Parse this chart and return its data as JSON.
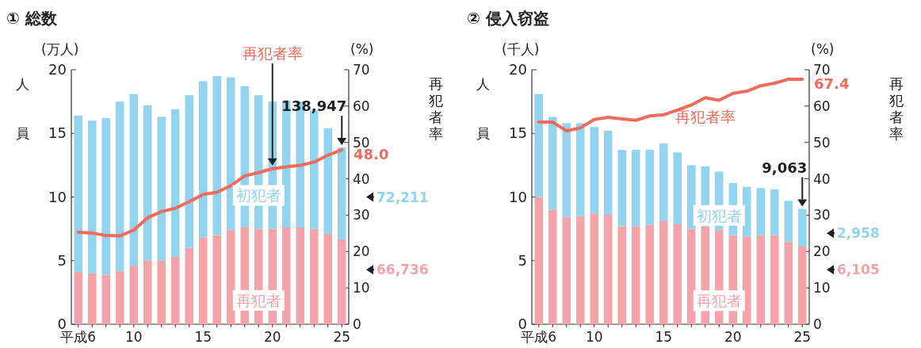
{
  "chart_data": [
    {
      "type": "bar",
      "title": "① 総数",
      "stacked": true,
      "legend": false,
      "grid": false,
      "categories": [
        "平成6",
        null,
        null,
        null,
        "10",
        null,
        null,
        null,
        null,
        "15",
        null,
        null,
        null,
        null,
        "20",
        null,
        null,
        null,
        null,
        "25"
      ],
      "ylabel": "人員",
      "y2label": "再犯者率",
      "annotations": [
        "(万人)",
        "(%)",
        {
          "text": "138,947",
          "x": "25",
          "y": 13.8947
        },
        "72,211",
        "66,736"
      ],
      "ylim": [
        0,
        20
      ],
      "yticks": [
        0,
        5,
        10,
        15,
        20
      ],
      "y2lim": [
        0,
        70
      ],
      "y2ticks": [
        0,
        10,
        20,
        30,
        40,
        50,
        60,
        70
      ],
      "series": [
        {
          "name": "再犯者",
          "color": "#f4a3a8",
          "values": [
            4.1,
            4.0,
            3.9,
            4.2,
            4.6,
            5.0,
            5.0,
            5.3,
            6.0,
            6.8,
            7.0,
            7.4,
            7.6,
            7.5,
            7.5,
            7.6,
            7.6,
            7.5,
            7.1,
            6.6736
          ]
        },
        {
          "name": "初犯者",
          "color": "#92d3f0",
          "values": [
            12.3,
            12.0,
            12.3,
            13.3,
            13.5,
            12.2,
            11.3,
            11.6,
            12.0,
            12.3,
            12.5,
            12.0,
            11.1,
            10.5,
            10.0,
            10.0,
            9.9,
            9.3,
            8.3,
            7.2211
          ]
        },
        {
          "name": "再犯者率",
          "type": "line",
          "axis": "y2",
          "color": "#ef6b5b",
          "values": [
            25.3,
            25.1,
            24.4,
            24.3,
            25.9,
            29.3,
            31.0,
            31.9,
            33.7,
            35.7,
            36.3,
            38.1,
            40.8,
            41.7,
            42.8,
            43.3,
            43.7,
            44.6,
            46.5,
            48.0
          ],
          "value_labels": [
            null,
            null,
            null,
            null,
            null,
            null,
            null,
            null,
            null,
            null,
            null,
            null,
            null,
            null,
            null,
            null,
            null,
            null,
            null,
            "48.0"
          ]
        }
      ]
    },
    {
      "type": "bar",
      "title": "② 侵入窃盗",
      "stacked": true,
      "legend": false,
      "grid": false,
      "categories": [
        "平成6",
        null,
        null,
        null,
        "10",
        null,
        null,
        null,
        null,
        "15",
        null,
        null,
        null,
        null,
        "20",
        null,
        null,
        null,
        null,
        "25"
      ],
      "ylabel": "人員",
      "y2label": "再犯者率",
      "annotations": [
        "(千人)",
        "(%)",
        {
          "text": "9,063",
          "x": "25",
          "y": 9.063
        },
        "2,958",
        "6,105"
      ],
      "ylim": [
        0,
        20
      ],
      "yticks": [
        0,
        5,
        10,
        15,
        20
      ],
      "y2lim": [
        0,
        70
      ],
      "y2ticks": [
        0,
        10,
        20,
        30,
        40,
        50,
        60,
        70
      ],
      "series": [
        {
          "name": "再犯者",
          "color": "#f4a3a8",
          "values": [
            10.0,
            9.0,
            8.4,
            8.5,
            8.7,
            8.6,
            7.7,
            7.7,
            7.8,
            8.1,
            7.9,
            7.5,
            7.7,
            7.4,
            7.0,
            6.9,
            7.0,
            7.0,
            6.5,
            6.105
          ]
        },
        {
          "name": "初犯者",
          "color": "#92d3f0",
          "values": [
            8.1,
            7.3,
            7.4,
            7.3,
            6.8,
            6.6,
            6.0,
            6.0,
            5.9,
            6.1,
            5.6,
            5.0,
            4.7,
            4.6,
            4.1,
            3.9,
            3.7,
            3.6,
            3.2,
            2.958
          ]
        },
        {
          "name": "再犯者率",
          "type": "line",
          "axis": "y2",
          "color": "#ef6b5b",
          "values": [
            55.6,
            55.6,
            53.2,
            54.0,
            56.3,
            56.9,
            56.5,
            56.1,
            57.3,
            57.6,
            58.9,
            60.3,
            62.3,
            61.6,
            63.5,
            64.1,
            65.6,
            66.3,
            67.4,
            67.4
          ],
          "value_labels": [
            null,
            null,
            null,
            null,
            null,
            null,
            null,
            null,
            null,
            null,
            null,
            null,
            null,
            null,
            null,
            null,
            null,
            null,
            null,
            "67.4"
          ]
        }
      ]
    }
  ]
}
